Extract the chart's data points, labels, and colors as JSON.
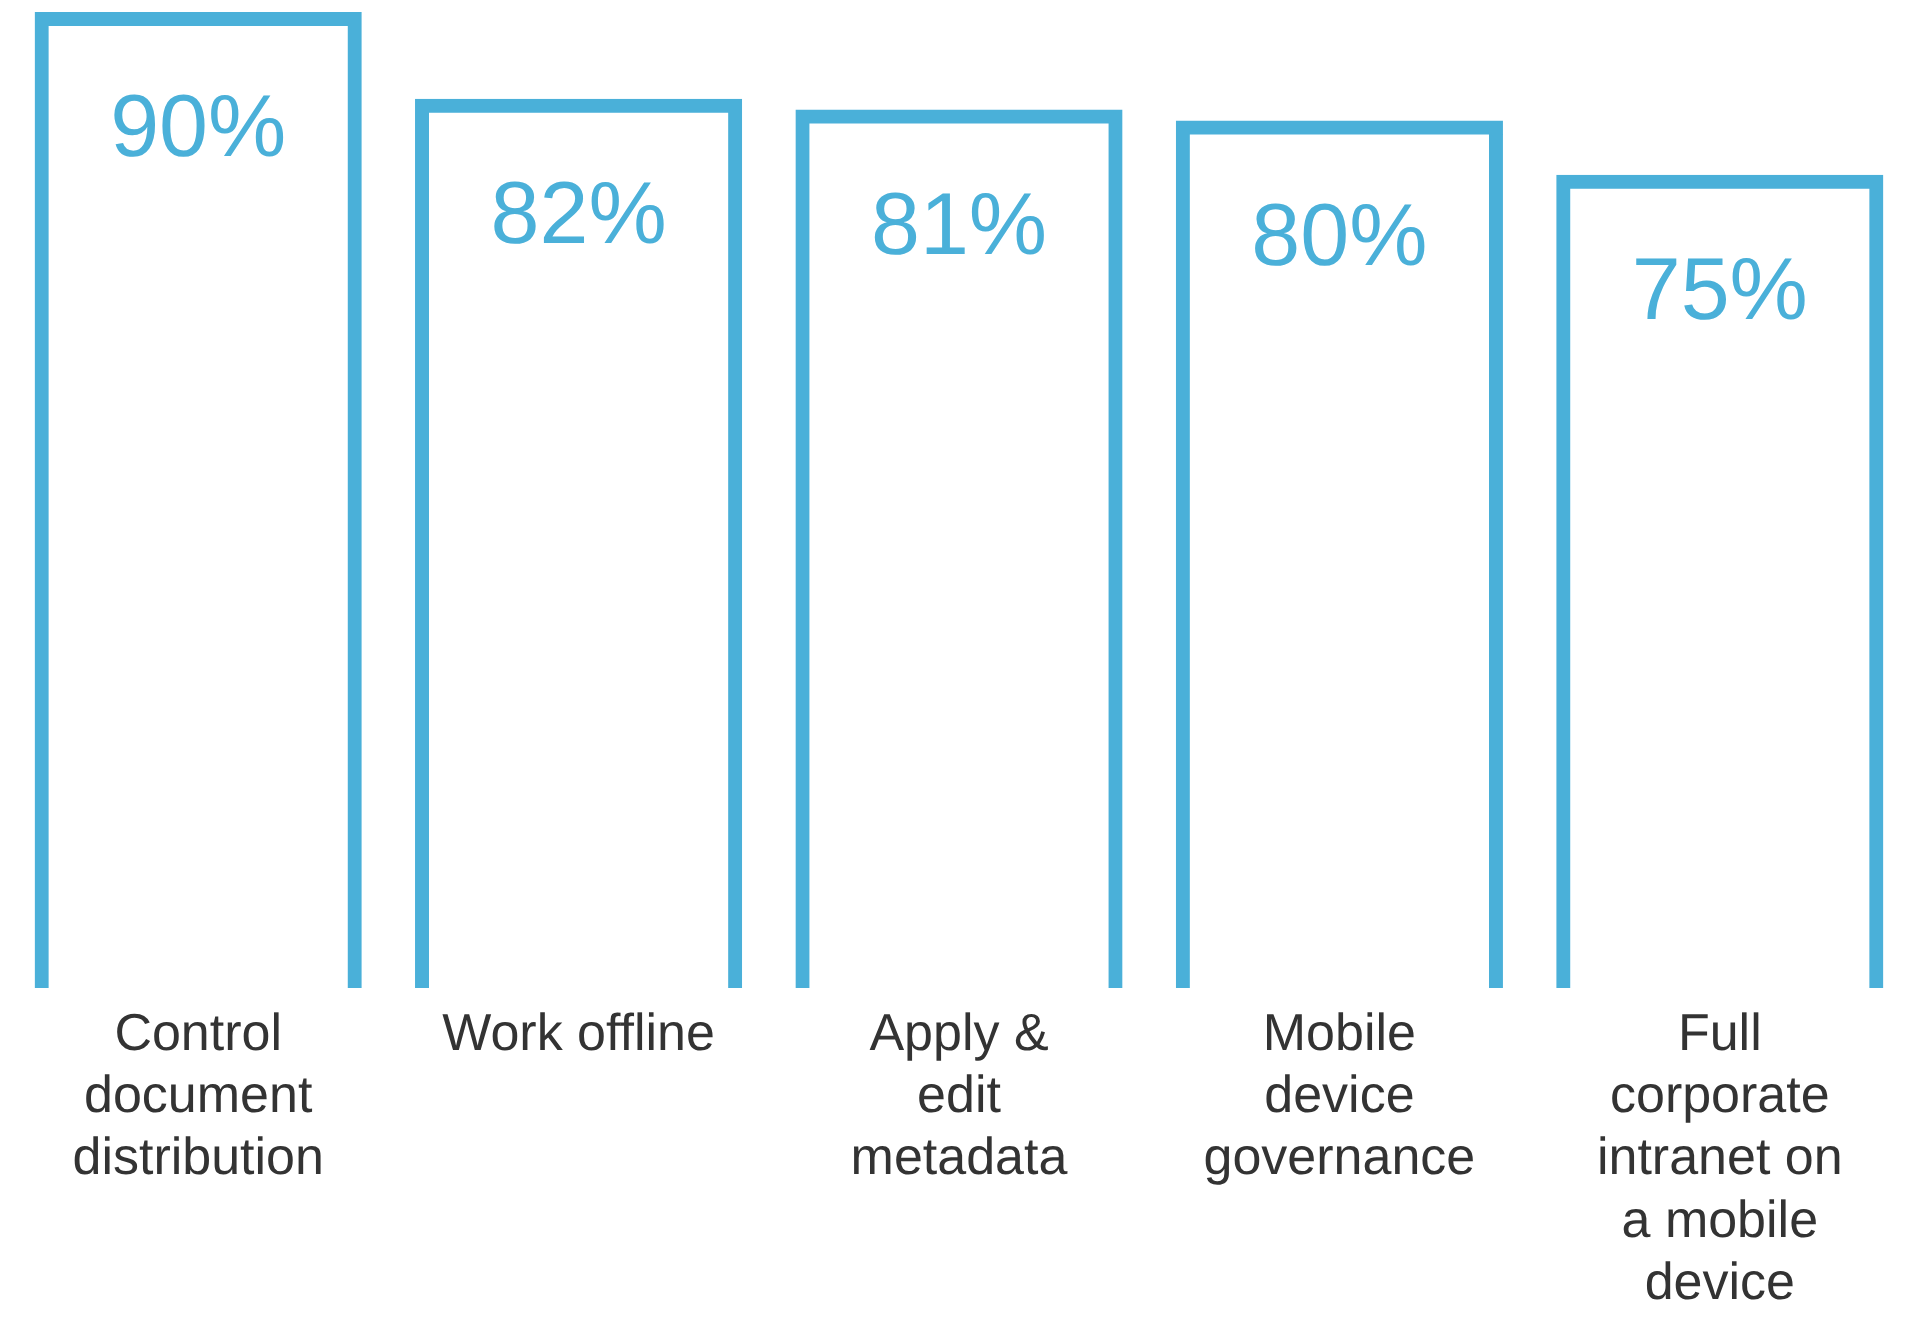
{
  "chart_data": {
    "type": "bar",
    "categories": [
      "Control document distribution",
      "Work offline",
      "Apply & edit metadata",
      "Mobile device governance",
      "Full corporate intranet on a mobile device"
    ],
    "values": [
      90,
      82,
      81,
      80,
      75
    ],
    "value_labels": [
      "90%",
      "82%",
      "81%",
      "80%",
      "75%"
    ],
    "color": "#4ab0d9",
    "tick_labels": "x",
    "grid": false,
    "legend": false
  }
}
